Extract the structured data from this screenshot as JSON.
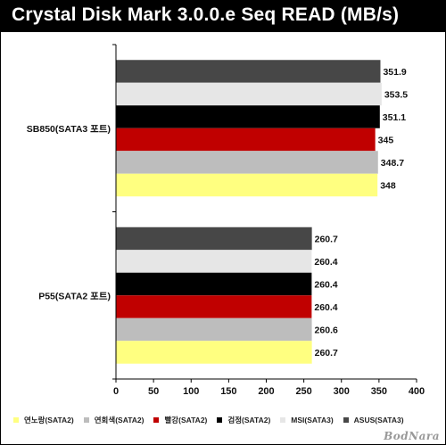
{
  "chart_data": {
    "type": "bar",
    "orientation": "horizontal",
    "title": "Crystal Disk Mark 3.0.0.e Seq READ (MB/s)",
    "categories": [
      "SB850(SATA3 포트)",
      "P55(SATA2 포트)"
    ],
    "series": [
      {
        "name": "ASUS(SATA3)",
        "color": "#474747",
        "values": [
          351.9,
          260.7
        ]
      },
      {
        "name": "MSI(SATA3)",
        "color": "#e6e6e6",
        "values": [
          353.5,
          260.4
        ]
      },
      {
        "name": "검정(SATA2)",
        "color": "#000000",
        "values": [
          351.1,
          260.4
        ]
      },
      {
        "name": "빨강(SATA2)",
        "color": "#c00000",
        "values": [
          345,
          260.4
        ]
      },
      {
        "name": "연회색(SATA2)",
        "color": "#bdbdbd",
        "values": [
          348.7,
          260.6
        ]
      },
      {
        "name": "연노랑(SATA2)",
        "color": "#ffff80",
        "values": [
          348,
          260.7
        ]
      }
    ],
    "legend_order": [
      "연노랑(SATA2)",
      "연회색(SATA2)",
      "빨강(SATA2)",
      "검정(SATA2)",
      "MSI(SATA3)",
      "ASUS(SATA3)"
    ],
    "xlim": [
      0,
      400
    ],
    "x_ticks": [
      0,
      50,
      100,
      150,
      200,
      250,
      300,
      350,
      400
    ],
    "xlabel": "",
    "ylabel": "",
    "grid": false,
    "legend_position": "bottom"
  },
  "watermark": "BodNara"
}
